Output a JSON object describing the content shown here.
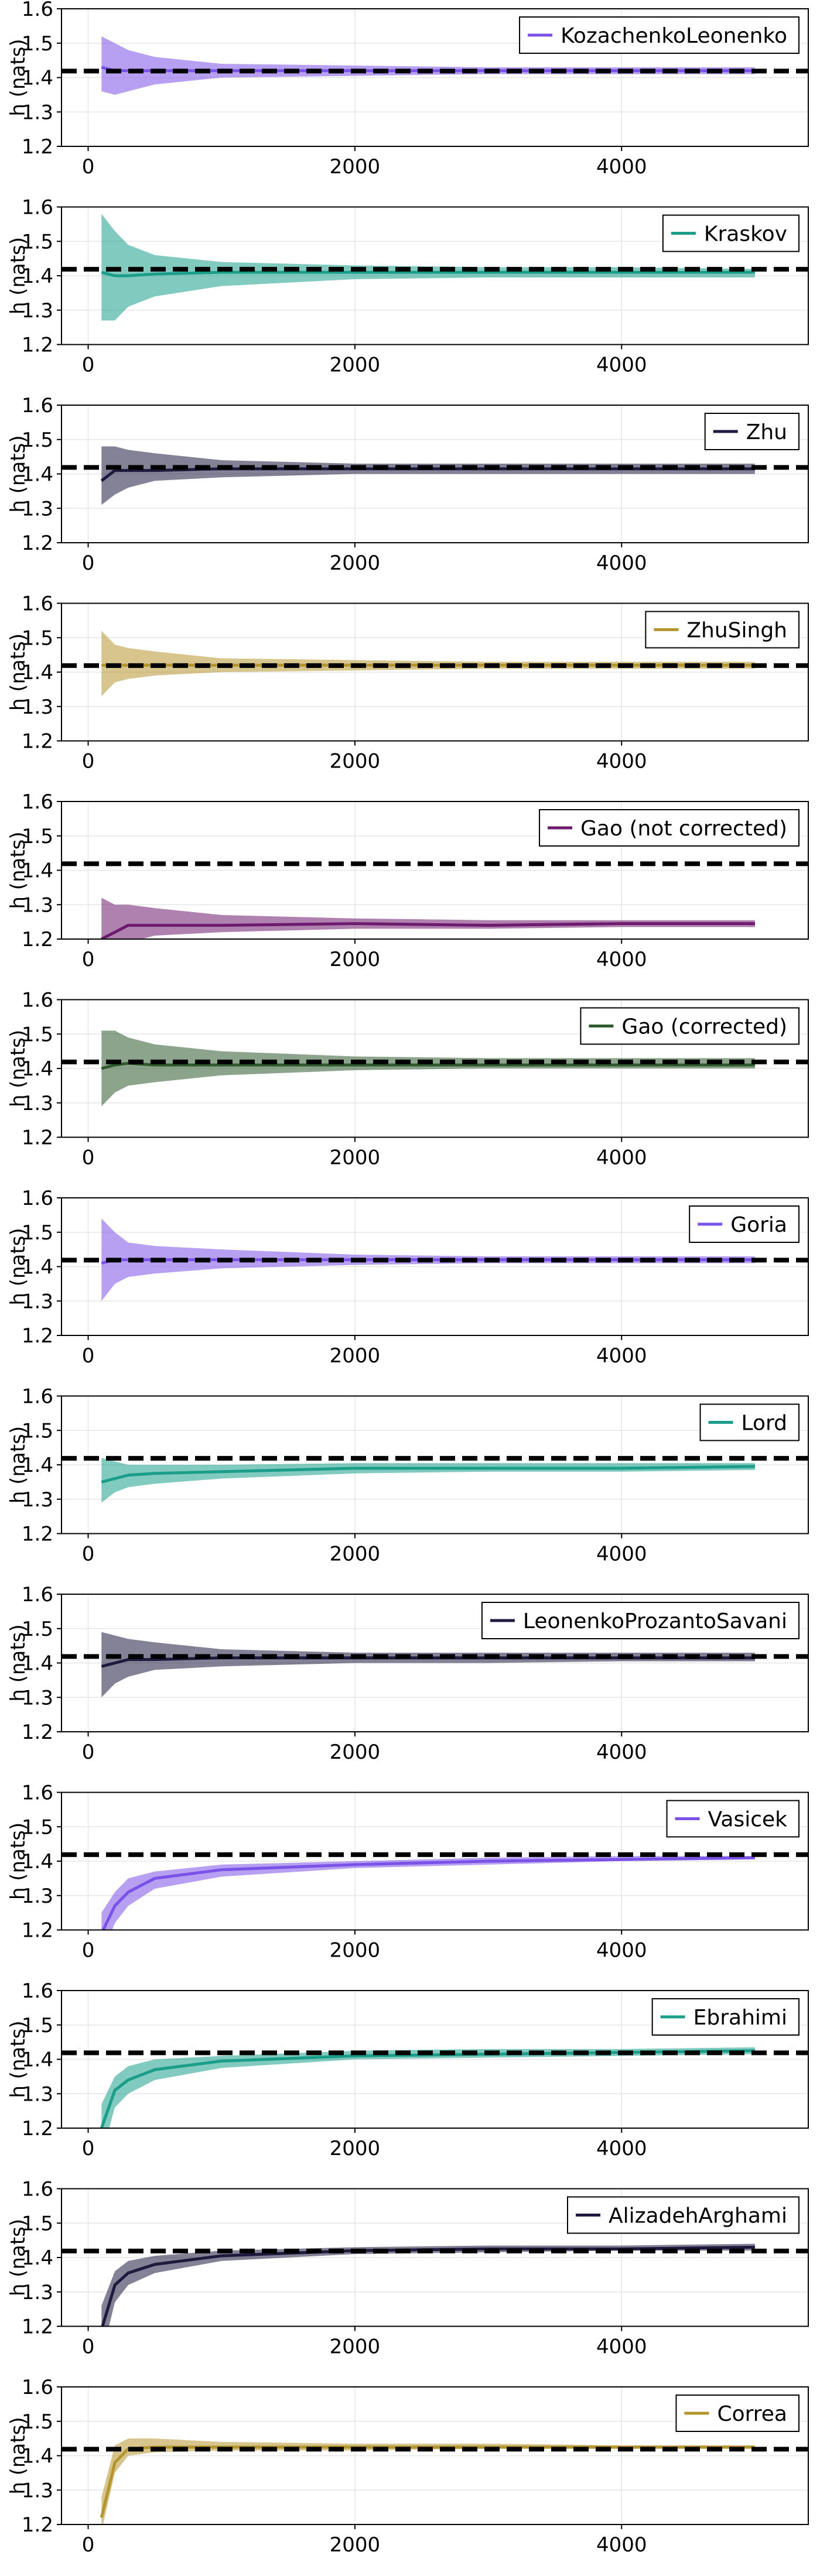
{
  "chart_data": {
    "type": "line",
    "layout": "vertical-stack",
    "xlim": [
      -200,
      5400
    ],
    "ylim": [
      1.2,
      1.6
    ],
    "x_ticks": [
      0,
      2000,
      4000
    ],
    "y_ticks": [
      1.2,
      1.3,
      1.4,
      1.5,
      1.6
    ],
    "y_tick_labels": [
      "1.2",
      "1.3",
      "1.4",
      "1.5",
      "1.6"
    ],
    "ylabel": "h (nats)",
    "xlabel": "",
    "grid": true,
    "legend_position": "top-right",
    "reference_line": {
      "y": 1.4189,
      "style": "dashed",
      "color": "#000000"
    },
    "x": [
      100,
      200,
      300,
      500,
      1000,
      2000,
      3000,
      4000,
      5000
    ],
    "panels": [
      {
        "name": "KozachenkoLeonenko",
        "color": "#7b52e8",
        "mean": [
          1.43,
          1.42,
          1.42,
          1.42,
          1.42,
          1.42,
          1.42,
          1.42,
          1.42
        ],
        "lower": [
          1.36,
          1.35,
          1.36,
          1.38,
          1.4,
          1.405,
          1.41,
          1.41,
          1.41
        ],
        "upper": [
          1.52,
          1.5,
          1.48,
          1.46,
          1.44,
          1.435,
          1.43,
          1.43,
          1.43
        ]
      },
      {
        "name": "Kraskov",
        "color": "#1a9e8a",
        "mean": [
          1.41,
          1.4,
          1.4,
          1.405,
          1.41,
          1.41,
          1.41,
          1.41,
          1.41
        ],
        "lower": [
          1.27,
          1.27,
          1.31,
          1.34,
          1.37,
          1.39,
          1.395,
          1.395,
          1.395
        ],
        "upper": [
          1.58,
          1.53,
          1.49,
          1.46,
          1.44,
          1.43,
          1.425,
          1.425,
          1.42
        ]
      },
      {
        "name": "Zhu",
        "color": "#1e1a3e",
        "mean": [
          1.38,
          1.41,
          1.41,
          1.41,
          1.415,
          1.415,
          1.415,
          1.415,
          1.415
        ],
        "lower": [
          1.31,
          1.34,
          1.36,
          1.38,
          1.39,
          1.4,
          1.4,
          1.4,
          1.4
        ],
        "upper": [
          1.48,
          1.48,
          1.47,
          1.46,
          1.44,
          1.43,
          1.43,
          1.43,
          1.43
        ]
      },
      {
        "name": "ZhuSingh",
        "color": "#b5952e",
        "mean": [
          1.42,
          1.42,
          1.42,
          1.42,
          1.42,
          1.42,
          1.42,
          1.42,
          1.42
        ],
        "lower": [
          1.33,
          1.37,
          1.38,
          1.39,
          1.4,
          1.405,
          1.41,
          1.41,
          1.41
        ],
        "upper": [
          1.52,
          1.48,
          1.47,
          1.46,
          1.44,
          1.435,
          1.43,
          1.43,
          1.43
        ]
      },
      {
        "name": "Gao (not corrected)",
        "color": "#6e1a6e",
        "mean": [
          1.2,
          1.22,
          1.24,
          1.24,
          1.24,
          1.245,
          1.24,
          1.245,
          1.245
        ],
        "lower": [
          1.17,
          1.17,
          1.19,
          1.21,
          1.22,
          1.23,
          1.23,
          1.235,
          1.235
        ],
        "upper": [
          1.32,
          1.3,
          1.3,
          1.29,
          1.27,
          1.26,
          1.255,
          1.255,
          1.255
        ]
      },
      {
        "name": "Gao (corrected)",
        "color": "#2e5a2e",
        "mean": [
          1.4,
          1.41,
          1.415,
          1.41,
          1.41,
          1.41,
          1.41,
          1.41,
          1.41
        ],
        "lower": [
          1.29,
          1.33,
          1.35,
          1.36,
          1.38,
          1.395,
          1.4,
          1.4,
          1.4
        ],
        "upper": [
          1.51,
          1.51,
          1.49,
          1.47,
          1.45,
          1.435,
          1.43,
          1.43,
          1.43
        ]
      },
      {
        "name": "Goria",
        "color": "#7b52e8",
        "mean": [
          1.41,
          1.42,
          1.42,
          1.42,
          1.42,
          1.42,
          1.42,
          1.42,
          1.42
        ],
        "lower": [
          1.3,
          1.35,
          1.37,
          1.38,
          1.395,
          1.405,
          1.41,
          1.41,
          1.41
        ],
        "upper": [
          1.54,
          1.5,
          1.47,
          1.46,
          1.45,
          1.435,
          1.43,
          1.43,
          1.43
        ]
      },
      {
        "name": "Lord",
        "color": "#1a9e8a",
        "mean": [
          1.35,
          1.36,
          1.37,
          1.375,
          1.38,
          1.39,
          1.39,
          1.39,
          1.395
        ],
        "lower": [
          1.29,
          1.32,
          1.335,
          1.345,
          1.36,
          1.375,
          1.38,
          1.38,
          1.385
        ],
        "upper": [
          1.42,
          1.41,
          1.4,
          1.4,
          1.4,
          1.405,
          1.405,
          1.405,
          1.405
        ]
      },
      {
        "name": "LeonenkoProzantoSavani",
        "color": "#1e1a3e",
        "mean": [
          1.39,
          1.4,
          1.41,
          1.41,
          1.415,
          1.415,
          1.415,
          1.415,
          1.415
        ],
        "lower": [
          1.3,
          1.34,
          1.36,
          1.38,
          1.39,
          1.4,
          1.4,
          1.405,
          1.405
        ],
        "upper": [
          1.49,
          1.48,
          1.47,
          1.46,
          1.44,
          1.43,
          1.43,
          1.43,
          1.43
        ]
      },
      {
        "name": "Vasicek",
        "color": "#7b52e8",
        "mean": [
          1.19,
          1.27,
          1.31,
          1.35,
          1.375,
          1.39,
          1.4,
          1.405,
          1.41
        ],
        "lower": [
          1.12,
          1.22,
          1.27,
          1.32,
          1.355,
          1.38,
          1.39,
          1.4,
          1.405
        ],
        "upper": [
          1.25,
          1.31,
          1.35,
          1.37,
          1.39,
          1.4,
          1.41,
          1.415,
          1.415
        ]
      },
      {
        "name": "Ebrahimi",
        "color": "#1a9e8a",
        "mean": [
          1.2,
          1.31,
          1.34,
          1.37,
          1.395,
          1.41,
          1.415,
          1.42,
          1.425
        ],
        "lower": [
          1.12,
          1.26,
          1.3,
          1.34,
          1.375,
          1.4,
          1.405,
          1.41,
          1.415
        ],
        "upper": [
          1.27,
          1.35,
          1.38,
          1.4,
          1.41,
          1.425,
          1.43,
          1.43,
          1.435
        ]
      },
      {
        "name": "AlizadehArghami",
        "color": "#1e1a3e",
        "mean": [
          1.19,
          1.32,
          1.355,
          1.38,
          1.405,
          1.42,
          1.425,
          1.425,
          1.43
        ],
        "lower": [
          1.11,
          1.27,
          1.32,
          1.355,
          1.39,
          1.41,
          1.415,
          1.42,
          1.42
        ],
        "upper": [
          1.26,
          1.36,
          1.39,
          1.405,
          1.42,
          1.43,
          1.435,
          1.435,
          1.44
        ]
      },
      {
        "name": "Correa",
        "color": "#b5952e",
        "mean": [
          1.22,
          1.38,
          1.42,
          1.425,
          1.425,
          1.425,
          1.425,
          1.425,
          1.425
        ],
        "lower": [
          1.18,
          1.35,
          1.4,
          1.41,
          1.415,
          1.415,
          1.42,
          1.42,
          1.42
        ],
        "upper": [
          1.28,
          1.43,
          1.45,
          1.45,
          1.44,
          1.435,
          1.435,
          1.43,
          1.43
        ]
      }
    ]
  }
}
